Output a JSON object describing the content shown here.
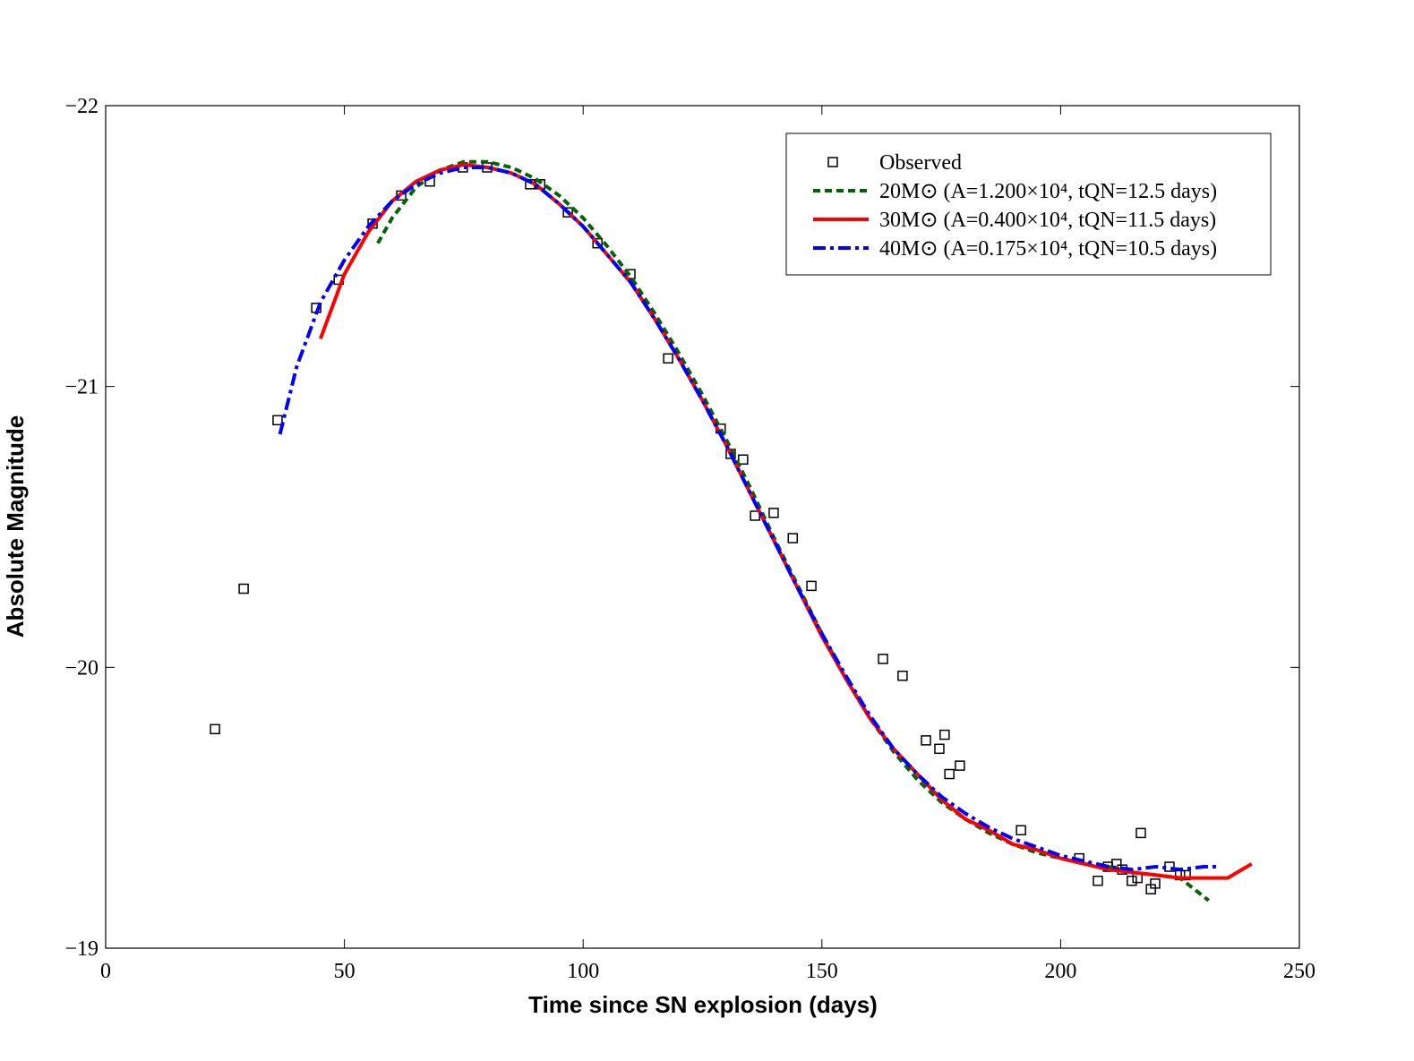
{
  "chart_data": {
    "type": "line",
    "xlabel": "Time since SN explosion (days)",
    "ylabel": "Absolute Magnitude",
    "xlim": [
      0,
      250
    ],
    "xticks": [
      0,
      50,
      100,
      150,
      200,
      250
    ],
    "ylim": [
      -22,
      -19
    ],
    "y_inverted": true,
    "yticks": [
      {
        "value": -22,
        "label": "−22"
      },
      {
        "value": -21,
        "label": "−21"
      },
      {
        "value": -20,
        "label": "−20"
      },
      {
        "value": -19,
        "label": "−19"
      }
    ],
    "legend": "upper right",
    "series": [
      {
        "name": "Observed",
        "color": "#000000",
        "style": "markers",
        "x": [
          22.9,
          28.9,
          36.0,
          44.1,
          48.8,
          55.9,
          61.9,
          67.9,
          74.8,
          79.9,
          88.9,
          91.0,
          96.8,
          103.0,
          109.9,
          117.8,
          128.8,
          130.9,
          133.5,
          136.0,
          139.9,
          143.9,
          147.8,
          162.8,
          166.9,
          171.8,
          174.6,
          175.7,
          176.7,
          178.9,
          191.7,
          203.9,
          207.8,
          209.9,
          211.7,
          212.9,
          214.9,
          216.1,
          216.8,
          218.9,
          219.8,
          222.8,
          225.0,
          226.2
        ],
        "values": [
          -19.78,
          -20.28,
          -20.88,
          -21.28,
          -21.38,
          -21.58,
          -21.68,
          -21.73,
          -21.78,
          -21.78,
          -21.72,
          -21.72,
          -21.62,
          -21.51,
          -21.4,
          -21.1,
          -20.85,
          -20.76,
          -20.74,
          -20.54,
          -20.55,
          -20.46,
          -20.29,
          -20.03,
          -19.97,
          -19.74,
          -19.71,
          -19.76,
          -19.62,
          -19.65,
          -19.42,
          -19.32,
          -19.24,
          -19.29,
          -19.3,
          -19.28,
          -19.24,
          -19.25,
          -19.41,
          -19.21,
          -19.23,
          -19.29,
          -19.26,
          -19.26
        ]
      },
      {
        "name": "20M⊙ (A=1.200×10⁴, tQN=12.5 days)",
        "color": "#006400",
        "style": "dotted",
        "x": [
          57,
          60,
          65,
          70,
          75,
          80,
          85,
          90,
          95,
          100,
          105,
          110,
          115,
          120,
          125,
          130,
          135,
          140,
          145,
          150,
          155,
          160,
          165,
          170,
          175,
          180,
          185,
          190,
          195,
          200,
          205,
          210,
          215,
          220,
          225,
          231
        ],
        "values": [
          -21.51,
          -21.6,
          -21.71,
          -21.77,
          -21.8,
          -21.8,
          -21.78,
          -21.74,
          -21.68,
          -21.6,
          -21.5,
          -21.39,
          -21.26,
          -21.12,
          -20.97,
          -20.81,
          -20.64,
          -20.46,
          -20.29,
          -20.12,
          -19.96,
          -19.82,
          -19.7,
          -19.6,
          -19.52,
          -19.46,
          -19.41,
          -19.37,
          -19.34,
          -19.32,
          -19.3,
          -19.29,
          -19.27,
          -19.26,
          -19.25,
          -19.17
        ]
      },
      {
        "name": "30M⊙ (A=0.400×10⁴, tQN=11.5 days)",
        "color": "#ff0000",
        "style": "solid",
        "x": [
          45,
          50,
          55,
          60,
          65,
          70,
          75,
          80,
          85,
          90,
          95,
          100,
          105,
          110,
          115,
          120,
          125,
          130,
          135,
          140,
          145,
          150,
          155,
          160,
          165,
          170,
          175,
          180,
          185,
          190,
          195,
          200,
          205,
          210,
          215,
          220,
          225,
          230,
          235,
          240
        ],
        "values": [
          -21.17,
          -21.4,
          -21.55,
          -21.66,
          -21.73,
          -21.77,
          -21.79,
          -21.78,
          -21.76,
          -21.72,
          -21.65,
          -21.57,
          -21.47,
          -21.37,
          -21.24,
          -21.1,
          -20.95,
          -20.79,
          -20.62,
          -20.45,
          -20.28,
          -20.11,
          -19.96,
          -19.82,
          -19.71,
          -19.62,
          -19.53,
          -19.46,
          -19.42,
          -19.37,
          -19.35,
          -19.32,
          -19.3,
          -19.28,
          -19.27,
          -19.26,
          -19.25,
          -19.25,
          -19.25,
          -19.3
        ]
      },
      {
        "name": "40M⊙ (A=0.175×10⁴, tQN=10.5 days)",
        "color": "#0000ff",
        "style": "dashdot",
        "x": [
          36.5,
          40,
          45,
          50,
          55,
          60,
          65,
          70,
          75,
          80,
          85,
          90,
          95,
          100,
          105,
          110,
          115,
          120,
          125,
          130,
          135,
          140,
          145,
          150,
          155,
          160,
          165,
          170,
          175,
          180,
          185,
          190,
          195,
          200,
          205,
          210,
          215,
          220,
          225,
          230,
          233
        ],
        "values": [
          -20.83,
          -21.07,
          -21.3,
          -21.45,
          -21.57,
          -21.66,
          -21.72,
          -21.76,
          -21.78,
          -21.78,
          -21.76,
          -21.72,
          -21.65,
          -21.57,
          -21.47,
          -21.37,
          -21.24,
          -21.1,
          -20.95,
          -20.79,
          -20.62,
          -20.45,
          -20.28,
          -20.12,
          -19.97,
          -19.83,
          -19.71,
          -19.62,
          -19.54,
          -19.48,
          -19.43,
          -19.39,
          -19.36,
          -19.33,
          -19.31,
          -19.29,
          -19.28,
          -19.29,
          -19.28,
          -19.29,
          -19.29
        ]
      }
    ]
  }
}
